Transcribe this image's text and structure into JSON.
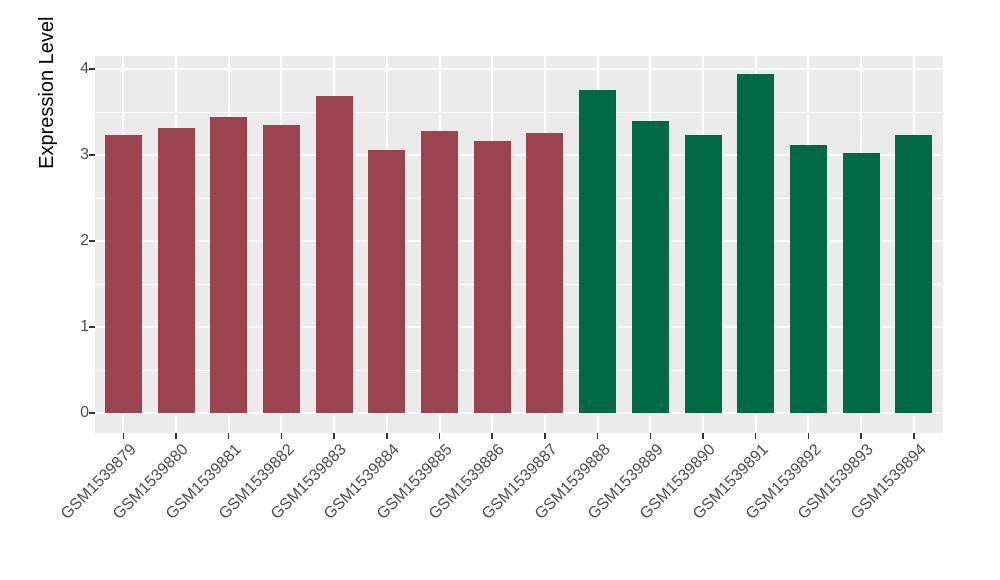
{
  "figure": {
    "background": "#FFFFFF",
    "panel_background": "#EBEBEB",
    "grid_color": "#FFFFFF",
    "axis_tick_color": "#333333",
    "tick_label_color": "#4D4D4D",
    "axis_title_color": "#000000",
    "bar_color_left_group": "#9B4450",
    "bar_color_right_group": "#006A47"
  },
  "chart_data": {
    "type": "bar",
    "title": "",
    "xlabel": "",
    "ylabel": "Expression Level",
    "ylim": [
      0,
      4.15
    ],
    "yticks": [
      0,
      1,
      2,
      3,
      4
    ],
    "yminor": [
      0.5,
      1.5,
      2.5,
      3.5
    ],
    "grid": "on",
    "legend_position": "none",
    "categories": [
      "GSM1539879",
      "GSM1539880",
      "GSM1539881",
      "GSM1539882",
      "GSM1539883",
      "GSM1539884",
      "GSM1539885",
      "GSM1539886",
      "GSM1539887",
      "GSM1539888",
      "GSM1539889",
      "GSM1539890",
      "GSM1539891",
      "GSM1539892",
      "GSM1539893",
      "GSM1539894"
    ],
    "values": [
      3.23,
      3.31,
      3.44,
      3.35,
      3.69,
      3.06,
      3.28,
      3.16,
      3.26,
      3.76,
      3.4,
      3.23,
      3.94,
      3.12,
      3.02,
      3.23
    ],
    "bar_colors": [
      "#9B4450",
      "#9B4450",
      "#9B4450",
      "#9B4450",
      "#9B4450",
      "#9B4450",
      "#9B4450",
      "#9B4450",
      "#9B4450",
      "#006A47",
      "#006A47",
      "#006A47",
      "#006A47",
      "#006A47",
      "#006A47",
      "#006A47"
    ]
  }
}
